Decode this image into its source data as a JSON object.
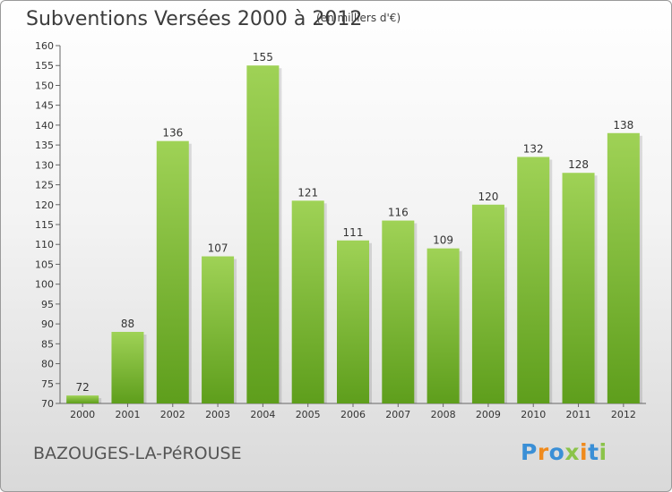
{
  "title": "Subventions Versées 2000 à 2012",
  "subtitle": "(en milliers d'€)",
  "commune": "BAZOUGES-LA-PéROUSE",
  "logo": {
    "letters": [
      {
        "ch": "P",
        "color": "#3a8fd6"
      },
      {
        "ch": "r",
        "color": "#f08a1c"
      },
      {
        "ch": "o",
        "color": "#3a8fd6"
      },
      {
        "ch": "x",
        "color": "#8bc34a"
      },
      {
        "ch": "i",
        "color": "#f08a1c"
      },
      {
        "ch": "t",
        "color": "#3a8fd6"
      },
      {
        "ch": "i",
        "color": "#8bc34a"
      }
    ]
  },
  "chart_data": {
    "type": "bar",
    "categories": [
      "2000",
      "2001",
      "2002",
      "2003",
      "2004",
      "2005",
      "2006",
      "2007",
      "2008",
      "2009",
      "2010",
      "2011",
      "2012"
    ],
    "values": [
      72,
      88,
      136,
      107,
      155,
      121,
      111,
      116,
      109,
      120,
      132,
      128,
      138
    ],
    "ylim": [
      70,
      160
    ],
    "yticks": [
      70,
      75,
      80,
      85,
      90,
      95,
      100,
      105,
      110,
      115,
      120,
      125,
      130,
      135,
      140,
      145,
      150,
      155,
      160
    ],
    "grid": false,
    "bar_color_light": "#9fd256",
    "bar_color_dark": "#5e9e1c"
  }
}
